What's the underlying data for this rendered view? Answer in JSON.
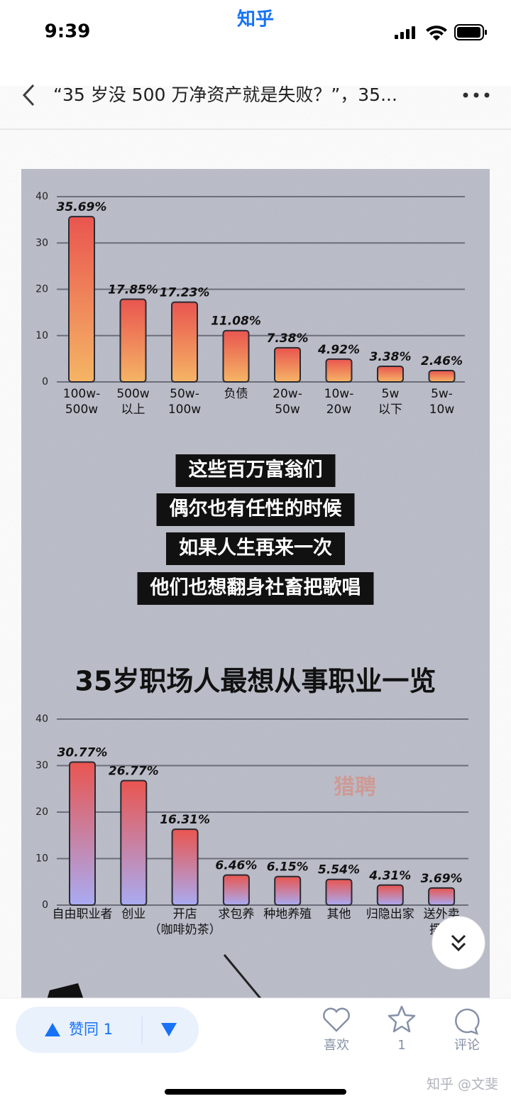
{
  "status_bar": {
    "time": "9:39",
    "app_name": "知乎"
  },
  "header": {
    "title": "“35 岁没 500 万净资产就是失败？”，35..."
  },
  "image": {
    "charts": [
      {
        "type": "bar",
        "categories": [
          [
            "100w-",
            "500w"
          ],
          [
            "500w",
            "以上"
          ],
          [
            "50w-",
            "100w"
          ],
          [
            "负债"
          ],
          [
            "20w-",
            "50w"
          ],
          [
            "10w-",
            "20w"
          ],
          [
            "5w",
            "以下"
          ],
          [
            "5w-",
            "10w"
          ]
        ],
        "values": [
          35.69,
          17.85,
          17.23,
          11.08,
          7.38,
          4.92,
          3.38,
          2.46
        ],
        "value_labels": [
          "35.69%",
          "17.85%",
          "17.23%",
          "11.08%",
          "7.38%",
          "4.92%",
          "3.38%",
          "2.46%"
        ],
        "ylim": [
          0,
          40
        ],
        "yticks": [
          0,
          10,
          20,
          30,
          40
        ],
        "grid": true,
        "colors": [
          "#e9554f",
          "#f5b565"
        ]
      },
      {
        "type": "bar",
        "title": "35岁职场人最想从事职业一览",
        "categories": [
          [
            "自由职业者"
          ],
          [
            "创业"
          ],
          [
            "开店",
            "（咖啡奶茶）"
          ],
          [
            "求包养"
          ],
          [
            "种地养殖"
          ],
          [
            "其他"
          ],
          [
            "归隐出家"
          ],
          [
            "送外卖",
            "摆摊"
          ]
        ],
        "values": [
          30.77,
          26.77,
          16.31,
          6.46,
          6.15,
          5.54,
          4.31,
          3.69
        ],
        "value_labels": [
          "30.77%",
          "26.77%",
          "16.31%",
          "6.46%",
          "6.15%",
          "5.54%",
          "4.31%",
          "3.69%"
        ],
        "ylim": [
          0,
          40
        ],
        "yticks": [
          0,
          10,
          20,
          30,
          40
        ],
        "grid": true,
        "colors": [
          "#e9554f",
          "#a9abf2"
        ]
      }
    ],
    "captions": [
      "这些百万富翁们",
      "偶尔也有任性的时候",
      "如果人生再来一次",
      "他们也想翻身社畜把歌唱"
    ],
    "logo_watermark": "猎聘"
  },
  "bottom_bar": {
    "vote": "赞同 1",
    "like": "喜欢",
    "favorite_count": "1",
    "comment": "评论"
  },
  "watermark": "知乎 @文斐"
}
